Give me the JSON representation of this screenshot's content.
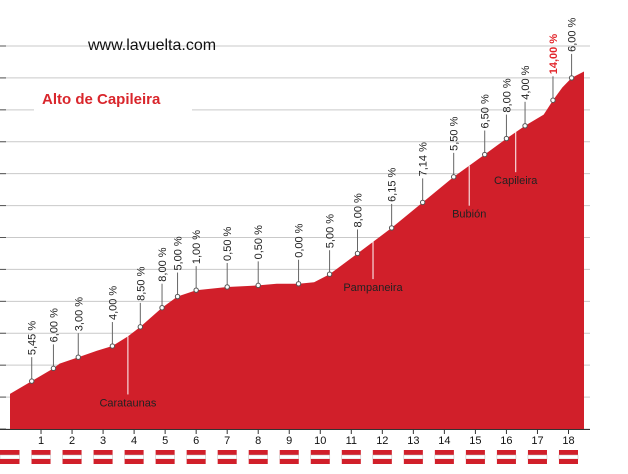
{
  "header": {
    "website": "www.lavuelta.com",
    "title": "Alto de Capileira"
  },
  "colors": {
    "profile_fill": "#d11f2a",
    "grade_highlight": "#e2262b",
    "title": "#d9262c",
    "km_bar": "#d11f2a"
  },
  "chart_data": {
    "type": "area",
    "title": "Alto de Capileira",
    "xlabel": "",
    "ylabel": "",
    "xlim": [
      0,
      18.5
    ],
    "ylim": [
      0,
      12
    ],
    "grid": "horizontal",
    "km_ticks": [
      "1",
      "2",
      "3",
      "4",
      "5",
      "6",
      "7",
      "8",
      "9",
      "10",
      "11",
      "12",
      "13",
      "14",
      "15",
      "16",
      "17",
      "18"
    ],
    "y_ticks": [
      0,
      1,
      2,
      3,
      4,
      5,
      6,
      7,
      8,
      9,
      10,
      11,
      12
    ],
    "profile": {
      "x": [
        0,
        0.7,
        1.4,
        1.6,
        2.2,
        2.8,
        3.3,
        3.8,
        4.2,
        4.9,
        5.4,
        6.0,
        7.0,
        8.0,
        8.6,
        9.3,
        9.8,
        10.3,
        11.2,
        12.3,
        13.3,
        14.3,
        15.3,
        16.0,
        16.6,
        17.2,
        17.5,
        17.8,
        18.1,
        18.5
      ],
      "y": [
        1.1,
        1.5,
        1.9,
        2.05,
        2.25,
        2.45,
        2.6,
        2.9,
        3.2,
        3.8,
        4.15,
        4.35,
        4.45,
        4.5,
        4.55,
        4.55,
        4.6,
        4.85,
        5.5,
        6.3,
        7.1,
        7.9,
        8.6,
        9.1,
        9.5,
        9.85,
        10.3,
        10.7,
        11.0,
        11.2
      ]
    },
    "gradients": [
      {
        "label": "5,45 %",
        "x": 0.7,
        "y": 1.5,
        "highlight": false
      },
      {
        "label": "6,00 %",
        "x": 1.4,
        "y": 1.9,
        "highlight": false
      },
      {
        "label": "3,00 %",
        "x": 2.2,
        "y": 2.25,
        "highlight": false
      },
      {
        "label": "4,00 %",
        "x": 3.3,
        "y": 2.6,
        "highlight": false
      },
      {
        "label": "8,50 %",
        "x": 4.2,
        "y": 3.2,
        "highlight": false
      },
      {
        "label": "8,00 %",
        "x": 4.9,
        "y": 3.8,
        "highlight": false
      },
      {
        "label": "5,00 %",
        "x": 5.4,
        "y": 4.15,
        "highlight": false
      },
      {
        "label": "1,00 %",
        "x": 6.0,
        "y": 4.35,
        "highlight": false
      },
      {
        "label": "0,50 %",
        "x": 7.0,
        "y": 4.45,
        "highlight": false
      },
      {
        "label": "0,50 %",
        "x": 8.0,
        "y": 4.5,
        "highlight": false
      },
      {
        "label": "0,00 %",
        "x": 9.3,
        "y": 4.55,
        "highlight": false
      },
      {
        "label": "5,00 %",
        "x": 10.3,
        "y": 4.85,
        "highlight": false
      },
      {
        "label": "8,00 %",
        "x": 11.2,
        "y": 5.5,
        "highlight": false
      },
      {
        "label": "6,15 %",
        "x": 12.3,
        "y": 6.3,
        "highlight": false
      },
      {
        "label": "7,14 %",
        "x": 13.3,
        "y": 7.1,
        "highlight": false
      },
      {
        "label": "5,50 %",
        "x": 14.3,
        "y": 7.9,
        "highlight": false
      },
      {
        "label": "6,50 %",
        "x": 15.3,
        "y": 8.6,
        "highlight": false
      },
      {
        "label": "8,00 %",
        "x": 16.0,
        "y": 9.1,
        "highlight": false
      },
      {
        "label": "4,00 %",
        "x": 16.6,
        "y": 9.5,
        "highlight": false
      },
      {
        "label": "14,00 %",
        "x": 17.5,
        "y": 10.3,
        "highlight": true
      },
      {
        "label": "6,00 %",
        "x": 18.1,
        "y": 11.0,
        "highlight": false
      }
    ],
    "towns": [
      {
        "name": "Carataunas",
        "x": 3.8,
        "y": 2.9
      },
      {
        "name": "Pampaneira",
        "x": 11.7,
        "y": 5.95
      },
      {
        "name": "Bubión",
        "x": 14.8,
        "y": 8.25
      },
      {
        "name": "Capileira",
        "x": 16.3,
        "y": 9.3
      }
    ]
  }
}
